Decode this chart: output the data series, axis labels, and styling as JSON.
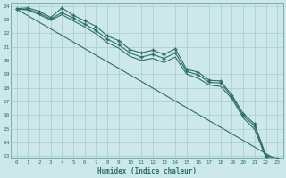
{
  "xlabel": "Humidex (Indice chaleur)",
  "bg_color": "#cce8e8",
  "grid_color": "#aacccc",
  "line_color": "#2d6e68",
  "xlim": [
    -0.5,
    23.5
  ],
  "ylim": [
    12.8,
    24.2
  ],
  "xticks": [
    0,
    1,
    2,
    3,
    4,
    5,
    6,
    7,
    8,
    9,
    10,
    11,
    12,
    13,
    14,
    15,
    16,
    17,
    18,
    19,
    20,
    21,
    22,
    23
  ],
  "yticks": [
    13,
    14,
    15,
    16,
    17,
    18,
    19,
    20,
    21,
    22,
    23,
    24
  ],
  "line1_x": [
    0,
    1,
    2,
    3,
    4,
    5,
    6,
    7,
    8,
    9,
    10,
    11,
    12,
    13,
    14,
    15,
    16,
    17,
    18,
    19,
    20,
    21,
    22,
    23
  ],
  "line1_y": [
    23.8,
    23.85,
    23.6,
    23.15,
    23.85,
    23.3,
    22.9,
    22.5,
    21.8,
    21.45,
    20.8,
    20.55,
    20.75,
    20.45,
    20.85,
    19.35,
    19.15,
    18.55,
    18.5,
    17.45,
    16.1,
    15.35,
    13.05,
    12.85
  ],
  "line2_x": [
    0,
    1,
    2,
    3,
    4,
    5,
    6,
    7,
    8,
    9,
    10,
    11,
    12,
    13,
    14,
    15,
    16,
    17,
    18,
    19,
    20,
    21,
    22,
    23
  ],
  "line2_y": [
    23.75,
    23.75,
    23.45,
    23.05,
    23.5,
    23.1,
    22.65,
    22.2,
    21.55,
    21.15,
    20.55,
    20.25,
    20.45,
    20.15,
    20.55,
    19.2,
    18.95,
    18.4,
    18.35,
    17.35,
    15.95,
    15.2,
    12.95,
    12.75
  ],
  "line3_x": [
    0,
    1,
    2,
    3,
    4,
    5,
    6,
    7,
    8,
    9,
    10,
    11,
    12,
    13,
    14,
    15,
    16,
    17,
    18,
    19,
    20,
    21,
    22,
    23
  ],
  "line3_y": [
    23.75,
    23.7,
    23.35,
    22.95,
    23.35,
    22.9,
    22.45,
    21.95,
    21.3,
    20.9,
    20.3,
    20.0,
    20.15,
    19.85,
    20.25,
    19.0,
    18.7,
    18.2,
    18.1,
    17.2,
    15.8,
    14.95,
    12.9,
    12.7
  ],
  "line4_x": [
    0,
    23
  ],
  "line4_y": [
    23.75,
    12.7
  ],
  "marker_size": 2.5,
  "linewidth": 0.8
}
